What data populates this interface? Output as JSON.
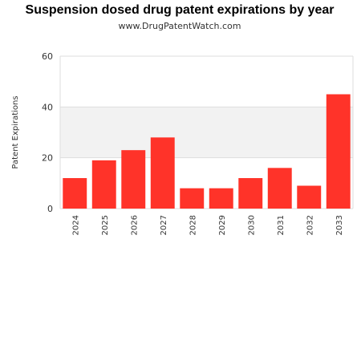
{
  "chart_data": {
    "type": "bar",
    "title": "Suspension dosed drug patent expirations by year",
    "subtitle": "www.DrugPatentWatch.com",
    "xlabel": "",
    "ylabel": "Patent Expirations",
    "categories": [
      "2024",
      "2025",
      "2026",
      "2027",
      "2028",
      "2029",
      "2030",
      "2031",
      "2032",
      "2033"
    ],
    "values": [
      12,
      19,
      23,
      28,
      8,
      8,
      12,
      16,
      9,
      45
    ],
    "ylim": [
      0,
      60
    ],
    "yticks": [
      0,
      20,
      40,
      60
    ],
    "grid": true,
    "legend": "none",
    "colors": {
      "bar": "#ff3329",
      "band": "#f2f2f2",
      "gridline": "#dddddd",
      "frame": "#dddddd"
    }
  }
}
